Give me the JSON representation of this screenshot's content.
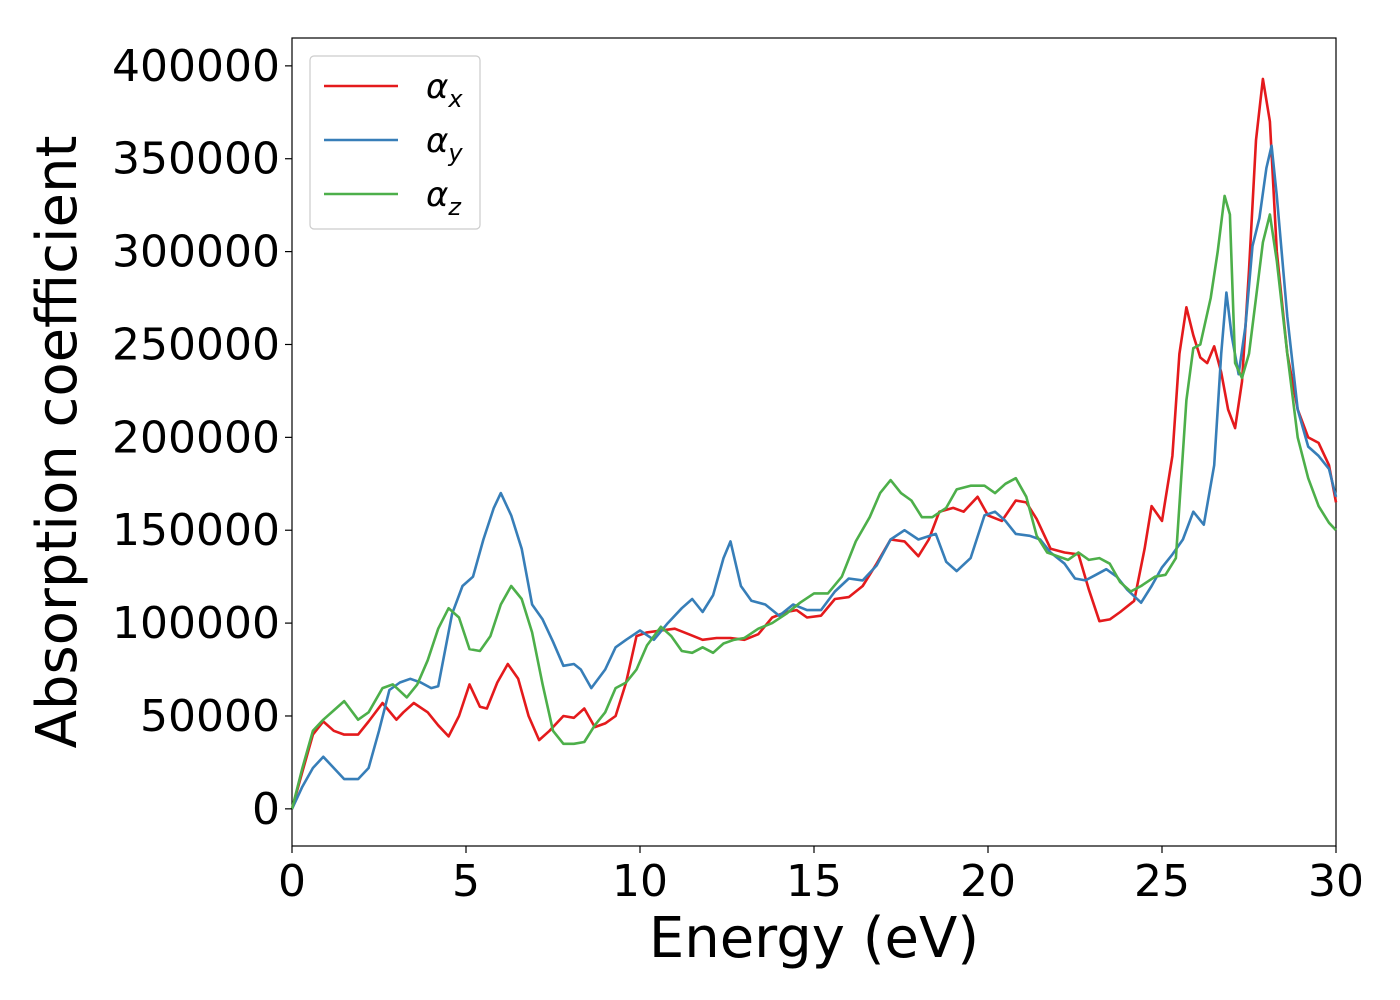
{
  "chart_data": {
    "type": "line",
    "title": "",
    "xlabel": "Energy (eV)",
    "ylabel": "Absorption coefficient",
    "xlim": [
      0,
      30
    ],
    "ylim": [
      -20000,
      415000
    ],
    "xticks": [
      0,
      5,
      10,
      15,
      20,
      25,
      30
    ],
    "yticks": [
      0,
      50000,
      100000,
      150000,
      200000,
      250000,
      300000,
      350000,
      400000
    ],
    "grid": false,
    "legend_position": "top-left",
    "series": [
      {
        "name": "α",
        "subscript": "x",
        "color": "#e41a1c",
        "points": [
          [
            0,
            0
          ],
          [
            0.3,
            20000
          ],
          [
            0.6,
            40000
          ],
          [
            0.9,
            47000
          ],
          [
            1.2,
            42000
          ],
          [
            1.5,
            40000
          ],
          [
            1.9,
            40000
          ],
          [
            2.2,
            47000
          ],
          [
            2.6,
            57000
          ],
          [
            3.0,
            48000
          ],
          [
            3.2,
            52000
          ],
          [
            3.5,
            57000
          ],
          [
            3.9,
            52000
          ],
          [
            4.2,
            45000
          ],
          [
            4.5,
            39000
          ],
          [
            4.8,
            50000
          ],
          [
            5.1,
            67000
          ],
          [
            5.4,
            55000
          ],
          [
            5.6,
            54000
          ],
          [
            5.9,
            68000
          ],
          [
            6.2,
            78000
          ],
          [
            6.5,
            70000
          ],
          [
            6.8,
            50000
          ],
          [
            7.1,
            37000
          ],
          [
            7.4,
            42000
          ],
          [
            7.8,
            50000
          ],
          [
            8.1,
            49000
          ],
          [
            8.4,
            54000
          ],
          [
            8.7,
            44000
          ],
          [
            9.0,
            46000
          ],
          [
            9.3,
            50000
          ],
          [
            9.6,
            68000
          ],
          [
            9.9,
            93000
          ],
          [
            10.2,
            95000
          ],
          [
            10.6,
            96000
          ],
          [
            11.0,
            97000
          ],
          [
            11.4,
            94000
          ],
          [
            11.8,
            91000
          ],
          [
            12.2,
            92000
          ],
          [
            12.6,
            92000
          ],
          [
            13.0,
            91000
          ],
          [
            13.4,
            94000
          ],
          [
            13.8,
            103000
          ],
          [
            14.2,
            106000
          ],
          [
            14.5,
            107000
          ],
          [
            14.8,
            103000
          ],
          [
            15.2,
            104000
          ],
          [
            15.6,
            113000
          ],
          [
            16.0,
            114000
          ],
          [
            16.4,
            120000
          ],
          [
            16.8,
            132000
          ],
          [
            17.2,
            145000
          ],
          [
            17.6,
            144000
          ],
          [
            18.0,
            136000
          ],
          [
            18.3,
            145000
          ],
          [
            18.6,
            160000
          ],
          [
            19.0,
            162000
          ],
          [
            19.3,
            160000
          ],
          [
            19.7,
            168000
          ],
          [
            20.0,
            158000
          ],
          [
            20.4,
            155000
          ],
          [
            20.8,
            166000
          ],
          [
            21.1,
            165000
          ],
          [
            21.4,
            156000
          ],
          [
            21.8,
            140000
          ],
          [
            22.2,
            138000
          ],
          [
            22.6,
            137000
          ],
          [
            22.9,
            118000
          ],
          [
            23.2,
            101000
          ],
          [
            23.5,
            102000
          ],
          [
            23.8,
            106000
          ],
          [
            24.2,
            112000
          ],
          [
            24.5,
            140000
          ],
          [
            24.7,
            163000
          ],
          [
            25.0,
            155000
          ],
          [
            25.3,
            190000
          ],
          [
            25.5,
            245000
          ],
          [
            25.7,
            270000
          ],
          [
            25.9,
            255000
          ],
          [
            26.1,
            243000
          ],
          [
            26.3,
            240000
          ],
          [
            26.5,
            249000
          ],
          [
            26.7,
            235000
          ],
          [
            26.9,
            215000
          ],
          [
            27.1,
            205000
          ],
          [
            27.3,
            230000
          ],
          [
            27.5,
            290000
          ],
          [
            27.7,
            360000
          ],
          [
            27.9,
            393000
          ],
          [
            28.1,
            370000
          ],
          [
            28.3,
            300000
          ],
          [
            28.6,
            245000
          ],
          [
            28.9,
            215000
          ],
          [
            29.2,
            200000
          ],
          [
            29.5,
            197000
          ],
          [
            29.8,
            185000
          ],
          [
            30.0,
            165000
          ]
        ]
      },
      {
        "name": "α",
        "subscript": "y",
        "color": "#377eb8",
        "points": [
          [
            0,
            0
          ],
          [
            0.3,
            12000
          ],
          [
            0.6,
            22000
          ],
          [
            0.9,
            28000
          ],
          [
            1.2,
            22000
          ],
          [
            1.5,
            16000
          ],
          [
            1.9,
            16000
          ],
          [
            2.2,
            22000
          ],
          [
            2.5,
            42000
          ],
          [
            2.8,
            64000
          ],
          [
            3.1,
            68000
          ],
          [
            3.4,
            70000
          ],
          [
            3.7,
            68000
          ],
          [
            4.0,
            65000
          ],
          [
            4.2,
            66000
          ],
          [
            4.6,
            105000
          ],
          [
            4.9,
            120000
          ],
          [
            5.2,
            125000
          ],
          [
            5.5,
            145000
          ],
          [
            5.8,
            162000
          ],
          [
            6.0,
            170000
          ],
          [
            6.3,
            158000
          ],
          [
            6.6,
            140000
          ],
          [
            6.9,
            110000
          ],
          [
            7.2,
            102000
          ],
          [
            7.5,
            90000
          ],
          [
            7.8,
            77000
          ],
          [
            8.1,
            78000
          ],
          [
            8.3,
            75000
          ],
          [
            8.6,
            65000
          ],
          [
            9.0,
            75000
          ],
          [
            9.3,
            87000
          ],
          [
            9.6,
            91000
          ],
          [
            10.0,
            96000
          ],
          [
            10.4,
            91000
          ],
          [
            10.8,
            100000
          ],
          [
            11.2,
            108000
          ],
          [
            11.5,
            113000
          ],
          [
            11.8,
            106000
          ],
          [
            12.1,
            115000
          ],
          [
            12.4,
            135000
          ],
          [
            12.6,
            144000
          ],
          [
            12.9,
            120000
          ],
          [
            13.2,
            112000
          ],
          [
            13.6,
            110000
          ],
          [
            14.0,
            104000
          ],
          [
            14.4,
            110000
          ],
          [
            14.8,
            107000
          ],
          [
            15.2,
            107000
          ],
          [
            15.6,
            117000
          ],
          [
            16.0,
            124000
          ],
          [
            16.4,
            123000
          ],
          [
            16.8,
            131000
          ],
          [
            17.2,
            145000
          ],
          [
            17.6,
            150000
          ],
          [
            18.0,
            145000
          ],
          [
            18.5,
            148000
          ],
          [
            18.8,
            133000
          ],
          [
            19.1,
            128000
          ],
          [
            19.5,
            135000
          ],
          [
            19.9,
            158000
          ],
          [
            20.2,
            160000
          ],
          [
            20.5,
            155000
          ],
          [
            20.8,
            148000
          ],
          [
            21.2,
            147000
          ],
          [
            21.5,
            145000
          ],
          [
            21.8,
            138000
          ],
          [
            22.2,
            132000
          ],
          [
            22.5,
            124000
          ],
          [
            22.8,
            123000
          ],
          [
            23.1,
            126000
          ],
          [
            23.4,
            129000
          ],
          [
            23.7,
            125000
          ],
          [
            24.0,
            118000
          ],
          [
            24.4,
            111000
          ],
          [
            24.7,
            120000
          ],
          [
            25.0,
            130000
          ],
          [
            25.3,
            137000
          ],
          [
            25.6,
            145000
          ],
          [
            25.9,
            160000
          ],
          [
            26.2,
            153000
          ],
          [
            26.5,
            185000
          ],
          [
            26.7,
            245000
          ],
          [
            26.85,
            278000
          ],
          [
            27.0,
            255000
          ],
          [
            27.2,
            234000
          ],
          [
            27.4,
            260000
          ],
          [
            27.6,
            303000
          ],
          [
            27.8,
            318000
          ],
          [
            28.0,
            345000
          ],
          [
            28.15,
            357000
          ],
          [
            28.3,
            330000
          ],
          [
            28.6,
            265000
          ],
          [
            28.9,
            215000
          ],
          [
            29.2,
            195000
          ],
          [
            29.5,
            190000
          ],
          [
            29.8,
            183000
          ],
          [
            30.0,
            168000
          ]
        ]
      },
      {
        "name": "α",
        "subscript": "z",
        "color": "#4daf4a",
        "points": [
          [
            0,
            0
          ],
          [
            0.3,
            22000
          ],
          [
            0.6,
            42000
          ],
          [
            0.9,
            48000
          ],
          [
            1.2,
            53000
          ],
          [
            1.5,
            58000
          ],
          [
            1.9,
            48000
          ],
          [
            2.2,
            52000
          ],
          [
            2.6,
            65000
          ],
          [
            2.9,
            67000
          ],
          [
            3.3,
            60000
          ],
          [
            3.6,
            67000
          ],
          [
            3.9,
            80000
          ],
          [
            4.2,
            97000
          ],
          [
            4.5,
            108000
          ],
          [
            4.8,
            103000
          ],
          [
            5.1,
            86000
          ],
          [
            5.4,
            85000
          ],
          [
            5.7,
            93000
          ],
          [
            6.0,
            110000
          ],
          [
            6.3,
            120000
          ],
          [
            6.6,
            113000
          ],
          [
            6.9,
            95000
          ],
          [
            7.2,
            67000
          ],
          [
            7.5,
            42000
          ],
          [
            7.8,
            35000
          ],
          [
            8.1,
            35000
          ],
          [
            8.4,
            36000
          ],
          [
            8.7,
            45000
          ],
          [
            9.0,
            52000
          ],
          [
            9.3,
            65000
          ],
          [
            9.6,
            68000
          ],
          [
            9.9,
            75000
          ],
          [
            10.2,
            88000
          ],
          [
            10.6,
            98000
          ],
          [
            10.9,
            93000
          ],
          [
            11.2,
            85000
          ],
          [
            11.5,
            84000
          ],
          [
            11.8,
            87000
          ],
          [
            12.1,
            84000
          ],
          [
            12.4,
            89000
          ],
          [
            12.7,
            91000
          ],
          [
            13.0,
            92000
          ],
          [
            13.4,
            97000
          ],
          [
            13.8,
            100000
          ],
          [
            14.2,
            105000
          ],
          [
            14.6,
            111000
          ],
          [
            15.0,
            116000
          ],
          [
            15.4,
            116000
          ],
          [
            15.8,
            125000
          ],
          [
            16.2,
            144000
          ],
          [
            16.6,
            157000
          ],
          [
            16.9,
            170000
          ],
          [
            17.2,
            177000
          ],
          [
            17.5,
            170000
          ],
          [
            17.8,
            166000
          ],
          [
            18.1,
            157000
          ],
          [
            18.4,
            157000
          ],
          [
            18.8,
            162000
          ],
          [
            19.1,
            172000
          ],
          [
            19.5,
            174000
          ],
          [
            19.9,
            174000
          ],
          [
            20.2,
            170000
          ],
          [
            20.5,
            175000
          ],
          [
            20.8,
            178000
          ],
          [
            21.1,
            168000
          ],
          [
            21.4,
            147000
          ],
          [
            21.7,
            138000
          ],
          [
            22.0,
            136000
          ],
          [
            22.3,
            134000
          ],
          [
            22.6,
            138000
          ],
          [
            22.9,
            134000
          ],
          [
            23.2,
            135000
          ],
          [
            23.5,
            132000
          ],
          [
            23.8,
            122000
          ],
          [
            24.1,
            117000
          ],
          [
            24.4,
            120000
          ],
          [
            24.8,
            125000
          ],
          [
            25.1,
            126000
          ],
          [
            25.4,
            135000
          ],
          [
            25.7,
            220000
          ],
          [
            25.9,
            248000
          ],
          [
            26.1,
            250000
          ],
          [
            26.4,
            275000
          ],
          [
            26.6,
            300000
          ],
          [
            26.8,
            330000
          ],
          [
            26.95,
            320000
          ],
          [
            27.1,
            240000
          ],
          [
            27.3,
            232000
          ],
          [
            27.5,
            245000
          ],
          [
            27.7,
            275000
          ],
          [
            27.9,
            305000
          ],
          [
            28.1,
            320000
          ],
          [
            28.3,
            295000
          ],
          [
            28.6,
            245000
          ],
          [
            28.9,
            200000
          ],
          [
            29.2,
            178000
          ],
          [
            29.5,
            163000
          ],
          [
            29.8,
            154000
          ],
          [
            30.0,
            150000
          ]
        ]
      }
    ]
  }
}
